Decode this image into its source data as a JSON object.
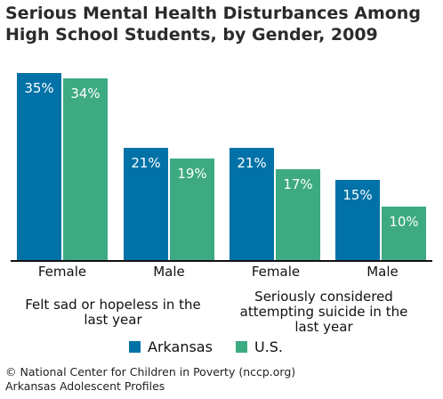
{
  "chart_data": {
    "type": "bar",
    "title": "Serious Mental Health Disturbances Among High School Students, by Gender, 2009",
    "groups": [
      "Felt sad or hopeless in the last year",
      "Seriously considered attempting suicide in the last year"
    ],
    "categories": [
      "Female",
      "Male",
      "Female",
      "Male"
    ],
    "series": [
      {
        "name": "Arkansas",
        "color": "#0072a8",
        "values": [
          35,
          21,
          21,
          15
        ],
        "labels": [
          "35%",
          "21%",
          "21%",
          "15%"
        ]
      },
      {
        "name": "U.S.",
        "color": "#3daa82",
        "values": [
          34,
          19,
          17,
          10
        ],
        "labels": [
          "34%",
          "19%",
          "17%",
          "10%"
        ]
      }
    ],
    "ylim": [
      0,
      36
    ],
    "grid": false,
    "legend_position": "bottom"
  },
  "footer": {
    "line1": "© National Center for Children in Poverty (nccp.org)",
    "line2": "Arkansas Adolescent Profiles"
  }
}
